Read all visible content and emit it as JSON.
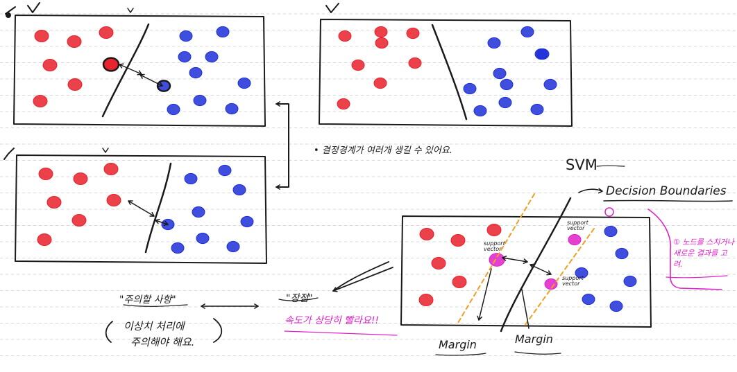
{
  "ruled_lines": true,
  "colors": {
    "ink": "#1a1a1a",
    "red_class": "#e8202a",
    "blue_class": "#1f2fd8",
    "highlight": "#e020c8",
    "margin_line": "#f0a020",
    "rule": "#d9d9d9"
  },
  "panels": [
    {
      "id": "panel-1",
      "check": "V",
      "red_count": 8,
      "blue_count": 10
    },
    {
      "id": "panel-2",
      "check": "V",
      "red_count": 8,
      "blue_count": 11
    },
    {
      "id": "panel-3",
      "check": "V",
      "red_count": 8,
      "blue_count": 10
    },
    {
      "id": "panel-svm",
      "red_count": 6,
      "blue_count": 5
    }
  ],
  "notes": {
    "multiple_boundaries": "• 결정경계가 여러개 생길 수 있어요.",
    "svm_title": "SVM",
    "decision_boundaries": "Decision Boundaries",
    "support_vector": "support vector",
    "margin": "Margin",
    "pink_note": "① 노드를 스치거나 새로운 결과를 고려.",
    "advantage_title": "\"장점\"",
    "advantage_text": "속도가 상당히 빨라요!!",
    "caution_title": "\"주의할 사항\"",
    "caution_text_1": "이상치 처리에",
    "caution_text_2": "주의해야 해요."
  }
}
